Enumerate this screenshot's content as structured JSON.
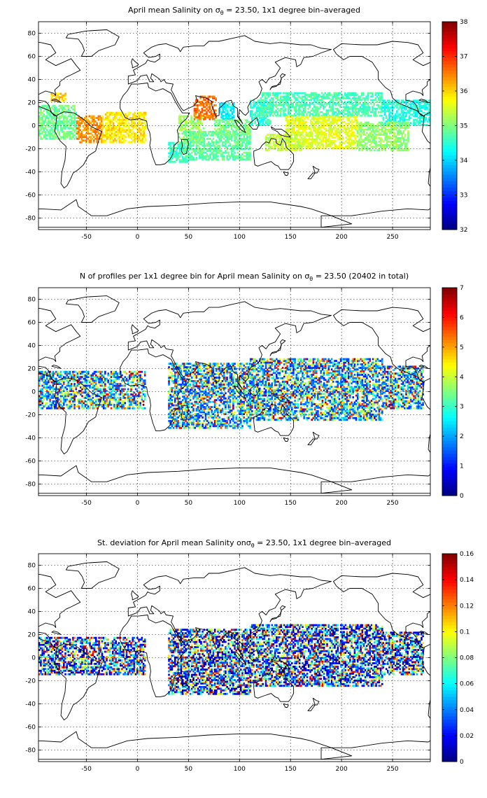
{
  "figure": {
    "panels": [
      {
        "title_pre": "April mean Salinity on ",
        "title_post": " = 23.50, 1x1 degree bin–averaged",
        "colorbar": {
          "min": 32,
          "max": 38,
          "ticks": [
            32,
            33,
            34,
            35,
            36,
            37,
            38
          ],
          "tick_labels": [
            "32",
            "33",
            "34",
            "35",
            "36",
            "37",
            "38"
          ]
        }
      },
      {
        "title_pre": "N of profiles per 1x1 degree bin for April mean Salinity on ",
        "title_post": " = 23.50 (20402 in total)",
        "colorbar": {
          "min": 0,
          "max": 7,
          "ticks": [
            0,
            1,
            2,
            3,
            4,
            5,
            6,
            7
          ],
          "tick_labels": [
            "0",
            "1",
            "2",
            "3",
            "4",
            "5",
            "6",
            "7"
          ]
        }
      },
      {
        "title_pre": "St. deviation for April mean Salinity on",
        "title_post": " = 23.50, 1x1 degree bin–averaged",
        "colorbar": {
          "min": 0,
          "max": 0.16,
          "ticks": [
            0,
            0.02,
            0.04,
            0.06,
            0.08,
            0.1,
            0.12,
            0.14,
            0.16
          ],
          "tick_labels": [
            "0",
            "0.02",
            "0.04",
            "0.06",
            "0.08",
            "0.1",
            "0.12",
            "0.14",
            "0.16"
          ]
        }
      }
    ],
    "sigma_symbol": "σ",
    "sigma_subscript": "θ"
  },
  "chart_data": [
    {
      "type": "heatmap",
      "title": "April mean Salinity on σθ = 23.50, 1x1 degree bin–averaged",
      "xlim": [
        -97,
        287
      ],
      "ylim": [
        -90,
        90
      ],
      "x_ticks": [
        -50,
        0,
        50,
        100,
        150,
        200,
        250
      ],
      "y_ticks": [
        -80,
        -60,
        -40,
        -20,
        0,
        20,
        40,
        60,
        80
      ],
      "x_tick_labels": [
        "-50",
        "0",
        "50",
        "100",
        "150",
        "200",
        "250"
      ],
      "y_tick_labels": [
        "-80",
        "-60",
        "-40",
        "-20",
        "0",
        "20",
        "40",
        "60",
        "80"
      ],
      "grid": true,
      "colormap": "jet",
      "clim": [
        32,
        38
      ],
      "regions": [
        {
          "lon": [
            -97,
            -60
          ],
          "lat": [
            -12,
            18
          ],
          "value": 34.9
        },
        {
          "lon": [
            -60,
            -35
          ],
          "lat": [
            -15,
            8
          ],
          "value": 36.4
        },
        {
          "lon": [
            -35,
            8
          ],
          "lat": [
            -15,
            12
          ],
          "value": 35.9
        },
        {
          "lon": [
            -85,
            -70
          ],
          "lat": [
            21,
            28
          ],
          "value": 36.0
        },
        {
          "lon": [
            30,
            50
          ],
          "lat": [
            -32,
            -15
          ],
          "value": 34.6
        },
        {
          "lon": [
            40,
            65
          ],
          "lat": [
            -15,
            8
          ],
          "value": 35.2
        },
        {
          "lon": [
            55,
            77
          ],
          "lat": [
            5,
            25
          ],
          "value": 36.6
        },
        {
          "lon": [
            80,
            95
          ],
          "lat": [
            5,
            20
          ],
          "value": 34.2
        },
        {
          "lon": [
            45,
            110
          ],
          "lat": [
            -30,
            -5
          ],
          "value": 34.8
        },
        {
          "lon": [
            75,
            110
          ],
          "lat": [
            -8,
            5
          ],
          "value": 35.0
        },
        {
          "lon": [
            110,
            130
          ],
          "lat": [
            0,
            22
          ],
          "value": 34.5
        },
        {
          "lon": [
            120,
            240
          ],
          "lat": [
            8,
            28
          ],
          "value": 34.7
        },
        {
          "lon": [
            240,
            287
          ],
          "lat": [
            0,
            22
          ],
          "value": 34.4
        },
        {
          "lon": [
            145,
            215
          ],
          "lat": [
            -20,
            8
          ],
          "value": 35.6
        },
        {
          "lon": [
            215,
            265
          ],
          "lat": [
            -22,
            3
          ],
          "value": 35.1
        },
        {
          "lon": [
            125,
            160
          ],
          "lat": [
            -22,
            -8
          ],
          "value": 35.4
        }
      ]
    },
    {
      "type": "heatmap",
      "title": "N of profiles per 1x1 degree bin for April mean Salinity on σθ = 23.50 (20402 in total)",
      "total_profiles": 20402,
      "xlim": [
        -97,
        287
      ],
      "ylim": [
        -90,
        90
      ],
      "x_ticks": [
        -50,
        0,
        50,
        100,
        150,
        200,
        250
      ],
      "y_ticks": [
        -80,
        -60,
        -40,
        -20,
        0,
        20,
        40,
        60,
        80
      ],
      "x_tick_labels": [
        "-50",
        "0",
        "50",
        "100",
        "150",
        "200",
        "250"
      ],
      "y_tick_labels": [
        "-80",
        "-60",
        "-40",
        "-20",
        "0",
        "20",
        "40",
        "60",
        "80"
      ],
      "grid": true,
      "colormap": "jet",
      "clim": [
        0,
        7
      ],
      "regions": [
        {
          "lon": [
            -97,
            8
          ],
          "lat": [
            -15,
            18
          ],
          "value": 1.6
        },
        {
          "lon": [
            30,
            110
          ],
          "lat": [
            -32,
            25
          ],
          "value": 3.2
        },
        {
          "lon": [
            110,
            240
          ],
          "lat": [
            -25,
            28
          ],
          "value": 3.6
        },
        {
          "lon": [
            240,
            280
          ],
          "lat": [
            -15,
            22
          ],
          "value": 2.4
        }
      ]
    },
    {
      "type": "heatmap",
      "title": "St. deviation for April mean Salinity onσθ = 23.50, 1x1 degree bin–averaged",
      "xlim": [
        -97,
        287
      ],
      "ylim": [
        -90,
        90
      ],
      "x_ticks": [
        -50,
        0,
        50,
        100,
        150,
        200,
        250
      ],
      "y_ticks": [
        -80,
        -60,
        -40,
        -20,
        0,
        20,
        40,
        60,
        80
      ],
      "x_tick_labels": [
        "-50",
        "0",
        "50",
        "100",
        "150",
        "200",
        "250"
      ],
      "y_tick_labels": [
        "-80",
        "-60",
        "-40",
        "-20",
        "0",
        "20",
        "40",
        "60",
        "80"
      ],
      "grid": true,
      "colormap": "jet",
      "clim": [
        0,
        0.16
      ],
      "regions": [
        {
          "lon": [
            -97,
            8
          ],
          "lat": [
            -15,
            18
          ],
          "value": 0.04
        },
        {
          "lon": [
            30,
            110
          ],
          "lat": [
            -32,
            25
          ],
          "value": 0.06
        },
        {
          "lon": [
            110,
            240
          ],
          "lat": [
            -25,
            28
          ],
          "value": 0.065
        },
        {
          "lon": [
            240,
            280
          ],
          "lat": [
            -15,
            22
          ],
          "value": 0.05
        }
      ]
    }
  ]
}
